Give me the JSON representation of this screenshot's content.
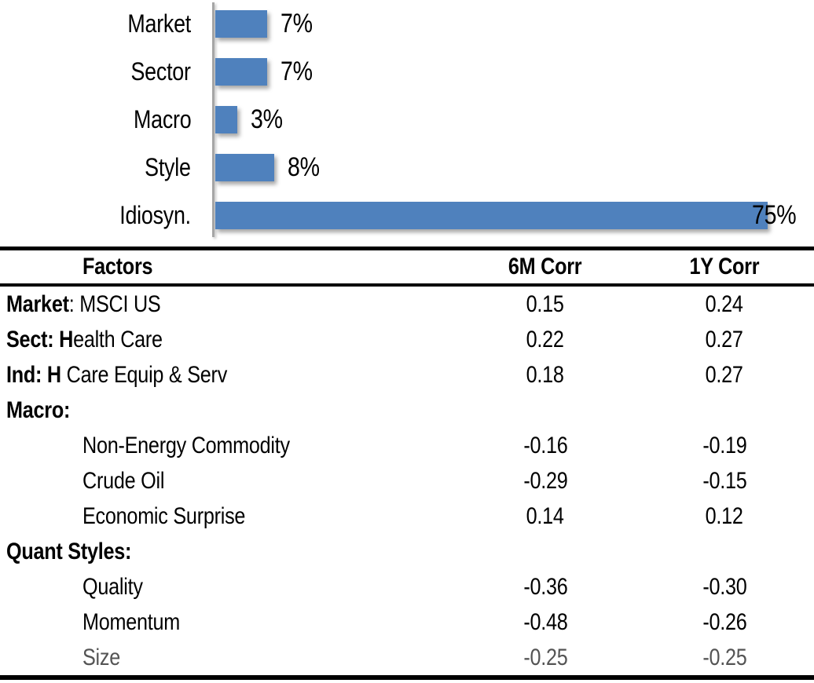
{
  "chart_data": [
    {
      "type": "bar",
      "orientation": "horizontal",
      "title": "",
      "categories": [
        "Market",
        "Sector",
        "Macro",
        "Style",
        "Idiosyn."
      ],
      "values": [
        7,
        7,
        3,
        8,
        75
      ],
      "value_labels": [
        "7%",
        "7%",
        "3%",
        "8%",
        "75%"
      ],
      "unit": "percent",
      "xlim": [
        0,
        80
      ],
      "grid": false,
      "legend": false,
      "bar_color": "#4F81BD",
      "axis_color": "#A6A6A6",
      "label_color": "#000000"
    },
    {
      "type": "table",
      "columns": [
        "Factors",
        "6M Corr",
        "1Y Corr"
      ],
      "rows": [
        [
          "Market: MSCI US",
          "0.15",
          "0.24"
        ],
        [
          "Sect: Health Care",
          "0.22",
          "0.27"
        ],
        [
          "Ind: H Care Equip & Serv",
          "0.18",
          "0.27"
        ],
        [
          "Macro:",
          "",
          ""
        ],
        [
          "Non-Energy Commodity",
          "-0.16",
          "-0.19"
        ],
        [
          "Crude Oil",
          "-0.29",
          "-0.15"
        ],
        [
          "Economic Surprise",
          "0.14",
          "0.12"
        ],
        [
          "Quant Styles:",
          "",
          ""
        ],
        [
          "Quality",
          "-0.36",
          "-0.30"
        ],
        [
          "Momentum",
          "-0.48",
          "-0.26"
        ],
        [
          "Size",
          "-0.25",
          "-0.25"
        ]
      ]
    }
  ],
  "table": {
    "headers": {
      "factors": "Factors",
      "six_m": "6M Corr",
      "one_y": "1Y Corr"
    },
    "rows": [
      {
        "label_bold": "Market",
        "label_regular": ": MSCI US",
        "indent": false,
        "six_m": "0.15",
        "one_y": "0.24",
        "muted": false
      },
      {
        "label_bold": "Sect: H",
        "label_regular": "ealth Care",
        "indent": false,
        "six_m": "0.22",
        "one_y": "0.27",
        "muted": false
      },
      {
        "label_bold": "Ind: H",
        "label_regular": " Care Equip & Serv",
        "indent": false,
        "six_m": "0.18",
        "one_y": "0.27",
        "muted": false
      },
      {
        "label_bold": "Macro:",
        "label_regular": "",
        "indent": false,
        "six_m": "",
        "one_y": "",
        "muted": false
      },
      {
        "label_bold": "",
        "label_regular": "Non-Energy Commodity",
        "indent": true,
        "six_m": "-0.16",
        "one_y": "-0.19",
        "muted": false
      },
      {
        "label_bold": "",
        "label_regular": "Crude Oil",
        "indent": true,
        "six_m": "-0.29",
        "one_y": "-0.15",
        "muted": false
      },
      {
        "label_bold": "",
        "label_regular": "Economic Surprise",
        "indent": true,
        "six_m": "0.14",
        "one_y": "0.12",
        "muted": false
      },
      {
        "label_bold": "Quant Styles:",
        "label_regular": "",
        "indent": false,
        "six_m": "",
        "one_y": "",
        "muted": false
      },
      {
        "label_bold": "",
        "label_regular": "Quality",
        "indent": true,
        "six_m": "-0.36",
        "one_y": "-0.30",
        "muted": false
      },
      {
        "label_bold": "",
        "label_regular": "Momentum",
        "indent": true,
        "six_m": "-0.48",
        "one_y": "-0.26",
        "muted": false
      },
      {
        "label_bold": "",
        "label_regular": "Size",
        "indent": true,
        "six_m": "-0.25",
        "one_y": "-0.25",
        "muted": true
      }
    ]
  }
}
